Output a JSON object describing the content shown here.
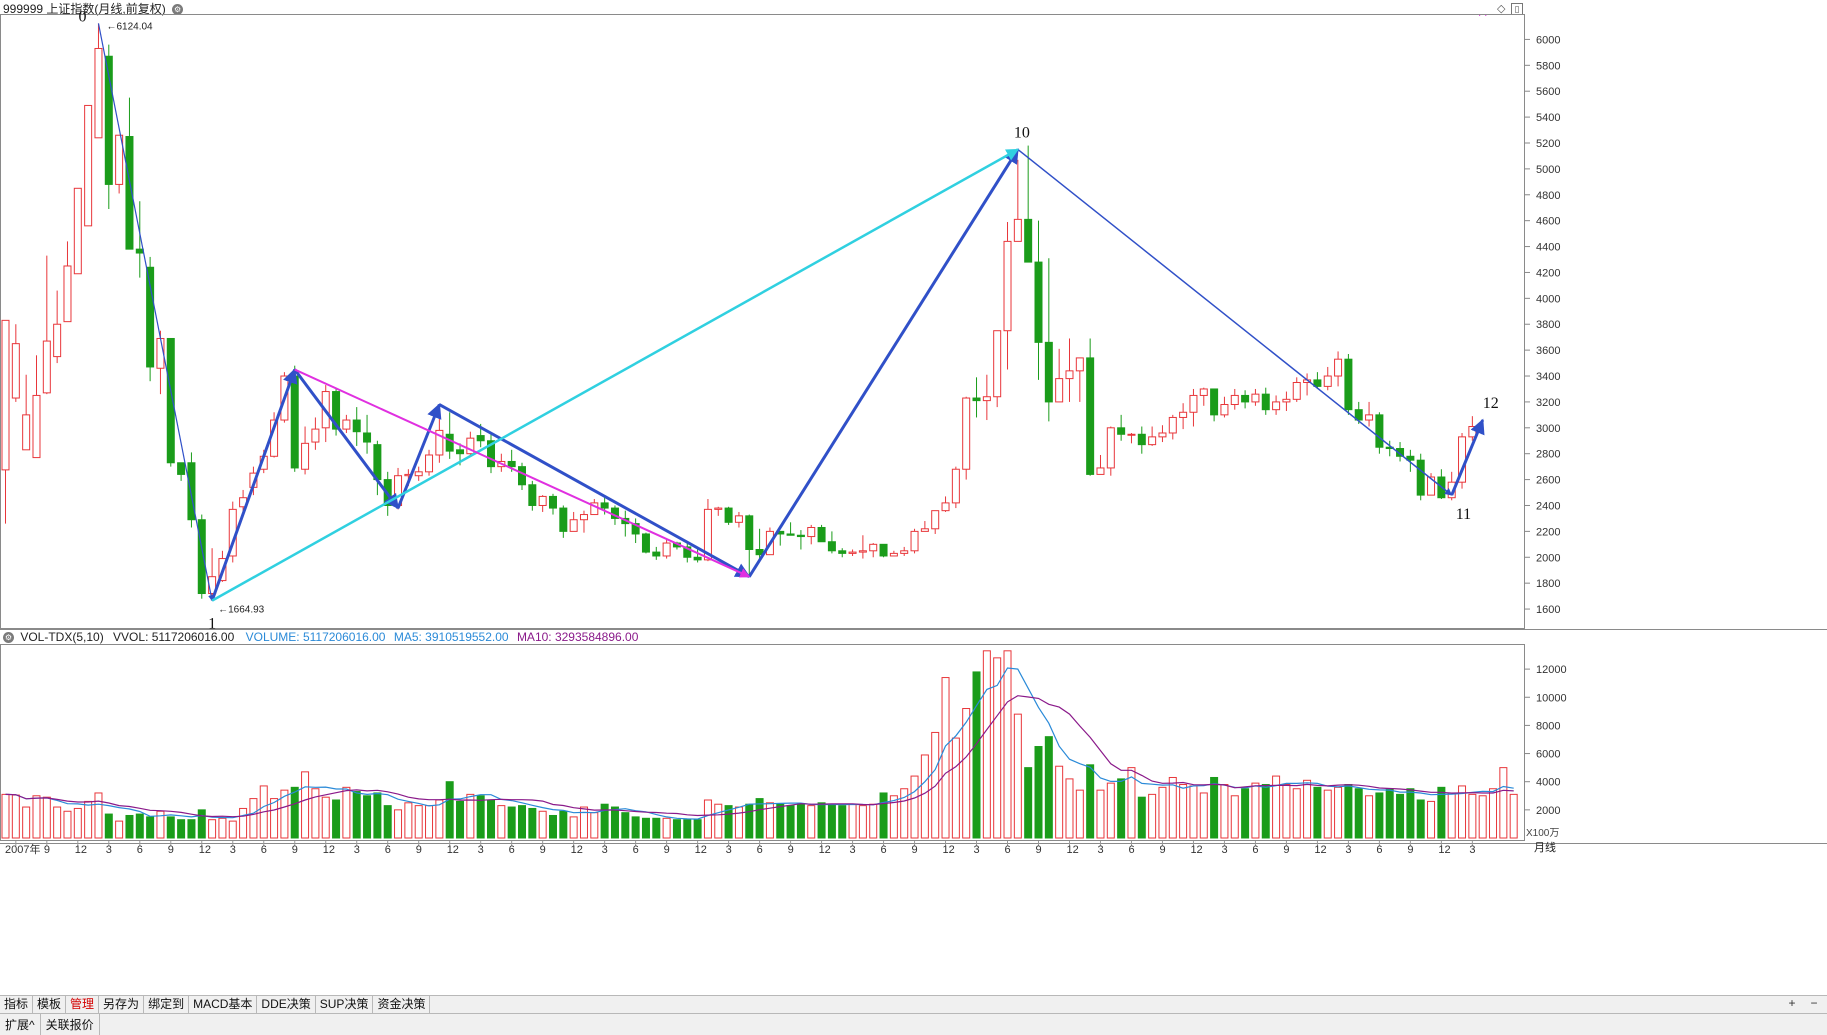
{
  "header": {
    "main_title": "999999 上证指数(月线,前复权)",
    "vol_title": "VOL-TDX(5,10)",
    "vvol": "VVOL: 5117206016.00",
    "volume": "VOLUME: 5117206016.00",
    "ma5": "MA5: 3910519552.00",
    "ma10": "MA10: 3293584896.00"
  },
  "period_label": "月线",
  "vol_unit": "X100万",
  "tabs": [
    "指标",
    "模板",
    "管理",
    "另存为",
    "绑定到",
    "MACD基本",
    "DDE决策",
    "SUP决策",
    "资金决策"
  ],
  "active_tab": "管理",
  "tabs2": [
    "扩展^",
    "关联报价"
  ],
  "zoom": [
    "+",
    "−"
  ],
  "colors": {
    "up": "#e8363a",
    "down": "#1a9c1a",
    "wave": "#3050c8",
    "cyan": "#30d0e0",
    "magenta": "#e030e0",
    "ma5": "#2a8ad8",
    "ma10": "#8a1a8a"
  },
  "chart_data": [
    {
      "type": "candlestick",
      "title": "999999 上证指数(月线,前复权)",
      "ylim": [
        1500,
        6150
      ],
      "yticks": [
        1600,
        1800,
        2000,
        2200,
        2400,
        2600,
        2800,
        3000,
        3200,
        3400,
        3600,
        3800,
        4000,
        4200,
        4400,
        4600,
        4800,
        5000,
        5200,
        5400,
        5600,
        5800,
        6000
      ],
      "start_month": "2006-12",
      "x_tick_labels": [
        "2007年",
        "9",
        "12",
        "3",
        "6",
        "9",
        "12",
        "3",
        "6",
        "9",
        "12",
        "3",
        "6",
        "9",
        "12",
        "3",
        "6",
        "9",
        "12",
        "3",
        "6",
        "9",
        "12",
        "3",
        "6",
        "9",
        "12",
        "3",
        "6",
        "9",
        "12",
        "3",
        "6",
        "9",
        "12",
        "3",
        "6",
        "9",
        "12",
        "3",
        "6",
        "9",
        "12",
        "3",
        "6",
        "9",
        "12",
        "3"
      ],
      "peak_label": "6124.04",
      "trough_label": "1664.93",
      "wave_labels": [
        "0",
        "1",
        "10",
        "11",
        "12"
      ],
      "ohlc": [
        [
          2675,
          3830,
          2260,
          3210
        ],
        [
          3230,
          3650,
          3200,
          3800
        ],
        [
          2830,
          3100,
          3410,
          2850
        ],
        [
          2770,
          3250,
          3560,
          2980
        ],
        [
          3270,
          3670,
          3260,
          4330
        ],
        [
          3550,
          3800,
          3500,
          4060
        ],
        [
          3820,
          4250,
          3820,
          4440
        ],
        [
          4190,
          4850,
          4460,
          4440
        ],
        [
          4560,
          5490,
          4800,
          5240
        ],
        [
          5240,
          5930,
          5270,
          6124
        ],
        [
          5870,
          4880,
          4690,
          5960
        ],
        [
          4880,
          5260,
          4990,
          4810
        ],
        [
          5250,
          4380,
          4420,
          5550
        ],
        [
          4380,
          4350,
          4750,
          4160
        ],
        [
          4240,
          3470,
          4320,
          3360
        ],
        [
          3460,
          3690,
          3750,
          3260
        ],
        [
          3690,
          2730,
          3000,
          2700
        ],
        [
          2730,
          2640,
          2590,
          2680
        ],
        [
          2730,
          2290,
          2810,
          2230
        ],
        [
          2290,
          1720,
          2330,
          1680
        ],
        [
          1720,
          1850,
          2070,
          1665
        ],
        [
          1820,
          1990,
          2050,
          1810
        ],
        [
          2010,
          2370,
          2430,
          1960
        ],
        [
          2390,
          2460,
          2520,
          2340
        ],
        [
          2540,
          2650,
          2700,
          2480
        ],
        [
          2680,
          2780,
          2830,
          2650
        ],
        [
          2780,
          3060,
          3120,
          2770
        ],
        [
          3060,
          3400,
          3430,
          3040
        ],
        [
          3400,
          2690,
          3480,
          2660
        ],
        [
          2680,
          2880,
          3010,
          2640
        ],
        [
          2890,
          2990,
          3080,
          2830
        ],
        [
          3000,
          3280,
          3330,
          2890
        ],
        [
          3280,
          2990,
          3310,
          2940
        ],
        [
          2990,
          3060,
          3100,
          2960
        ],
        [
          3060,
          2970,
          3160,
          2860
        ],
        [
          2960,
          2890,
          3100,
          2800
        ],
        [
          2870,
          2600,
          2900,
          2480
        ],
        [
          2600,
          2400,
          2660,
          2320
        ],
        [
          2400,
          2630,
          2690,
          2370
        ],
        [
          2630,
          2640,
          2680,
          2550
        ],
        [
          2630,
          2660,
          2700,
          2590
        ],
        [
          2660,
          2790,
          2830,
          2630
        ],
        [
          2790,
          2980,
          3120,
          2730
        ],
        [
          2950,
          2820,
          3120,
          2760
        ],
        [
          2830,
          2800,
          2880,
          2710
        ],
        [
          2800,
          2920,
          2970,
          2780
        ],
        [
          2940,
          2900,
          3030,
          2850
        ],
        [
          2900,
          2700,
          2950,
          2650
        ],
        [
          2700,
          2740,
          2800,
          2660
        ],
        [
          2740,
          2700,
          2830,
          2660
        ],
        [
          2700,
          2560,
          2730,
          2520
        ],
        [
          2560,
          2400,
          2590,
          2360
        ],
        [
          2400,
          2470,
          2480,
          2350
        ],
        [
          2470,
          2380,
          2490,
          2330
        ],
        [
          2380,
          2200,
          2400,
          2150
        ],
        [
          2200,
          2290,
          2350,
          2250
        ],
        [
          2290,
          2330,
          2360,
          2190
        ],
        [
          2330,
          2420,
          2450,
          2350
        ],
        [
          2420,
          2380,
          2470,
          2330
        ],
        [
          2380,
          2300,
          2400,
          2250
        ],
        [
          2300,
          2260,
          2360,
          2160
        ],
        [
          2260,
          2180,
          2300,
          2110
        ],
        [
          2180,
          2040,
          2190,
          2030
        ],
        [
          2040,
          2010,
          2080,
          1980
        ],
        [
          2010,
          2110,
          2140,
          1990
        ],
        [
          2110,
          2080,
          2120,
          2060
        ],
        [
          2080,
          2000,
          2110,
          1960
        ],
        [
          2000,
          1980,
          2080,
          1960
        ],
        [
          1980,
          2370,
          2450,
          1970
        ],
        [
          2370,
          2380,
          2390,
          2320
        ],
        [
          2380,
          2270,
          2390,
          2250
        ],
        [
          2270,
          2320,
          2350,
          2230
        ],
        [
          2320,
          2060,
          2330,
          1850
        ],
        [
          2060,
          2020,
          2220,
          1990
        ],
        [
          2020,
          2200,
          2230,
          2140
        ],
        [
          2200,
          2180,
          2200,
          2090
        ],
        [
          2180,
          2170,
          2270,
          2180
        ],
        [
          2170,
          2160,
          2210,
          2060
        ],
        [
          2160,
          2230,
          2250,
          2100
        ],
        [
          2230,
          2120,
          2250,
          2140
        ],
        [
          2120,
          2050,
          2200,
          2030
        ],
        [
          2050,
          2030,
          2070,
          2000
        ],
        [
          2030,
          2040,
          2060,
          2010
        ],
        [
          2040,
          2050,
          2170,
          1990
        ],
        [
          2050,
          2100,
          2110,
          2000
        ],
        [
          2100,
          2010,
          2070,
          2000
        ],
        [
          2010,
          2030,
          2050,
          2010
        ],
        [
          2030,
          2050,
          2080,
          2010
        ],
        [
          2050,
          2200,
          2220,
          2030
        ],
        [
          2200,
          2220,
          2280,
          2200
        ],
        [
          2220,
          2360,
          2360,
          2180
        ],
        [
          2360,
          2420,
          2470,
          2350
        ],
        [
          2420,
          2680,
          2700,
          2380
        ],
        [
          2680,
          3230,
          3240,
          2600
        ],
        [
          3230,
          3210,
          3390,
          3080
        ],
        [
          3210,
          3240,
          3410,
          3060
        ],
        [
          3240,
          3750,
          3750,
          3160
        ],
        [
          3750,
          4440,
          4590,
          3450
        ],
        [
          4440,
          4610,
          5070,
          4450
        ],
        [
          4610,
          4280,
          5180,
          4490
        ],
        [
          4280,
          3660,
          4600,
          3370
        ],
        [
          3660,
          3200,
          4310,
          3050
        ],
        [
          3200,
          3380,
          3610,
          3270
        ],
        [
          3380,
          3440,
          3690,
          3200
        ],
        [
          3440,
          3540,
          3490,
          3200
        ],
        [
          3540,
          2640,
          3690,
          2630
        ],
        [
          2640,
          2690,
          2790,
          2640
        ],
        [
          2690,
          3000,
          3010,
          2630
        ],
        [
          3000,
          2950,
          3100,
          2900
        ],
        [
          2950,
          2950,
          2960,
          2880
        ],
        [
          2950,
          2870,
          3010,
          2800
        ],
        [
          2870,
          2930,
          3010,
          2860
        ],
        [
          2930,
          2960,
          3020,
          2890
        ],
        [
          2960,
          3080,
          3100,
          2910
        ],
        [
          3080,
          3120,
          3190,
          2990
        ],
        [
          3120,
          3250,
          3300,
          3010
        ],
        [
          3250,
          3300,
          3310,
          3170
        ],
        [
          3300,
          3100,
          3280,
          3050
        ],
        [
          3100,
          3180,
          3240,
          3080
        ],
        [
          3180,
          3250,
          3300,
          3140
        ],
        [
          3250,
          3200,
          3290,
          3150
        ],
        [
          3200,
          3260,
          3300,
          3170
        ],
        [
          3260,
          3140,
          3310,
          3100
        ],
        [
          3140,
          3200,
          3250,
          3100
        ],
        [
          3200,
          3220,
          3280,
          3130
        ],
        [
          3220,
          3350,
          3390,
          3200
        ],
        [
          3350,
          3370,
          3420,
          3250
        ],
        [
          3370,
          3320,
          3430,
          3300
        ],
        [
          3320,
          3400,
          3470,
          3290
        ],
        [
          3400,
          3530,
          3590,
          3320
        ],
        [
          3530,
          3140,
          3570,
          3100
        ],
        [
          3140,
          3060,
          3200,
          3030
        ],
        [
          3060,
          3100,
          3200,
          3010
        ],
        [
          3100,
          2850,
          3120,
          2800
        ],
        [
          2850,
          2840,
          2900,
          2780
        ],
        [
          2840,
          2780,
          2890,
          2740
        ],
        [
          2780,
          2750,
          2830,
          2660
        ],
        [
          2750,
          2480,
          2800,
          2440
        ],
        [
          2480,
          2620,
          2650,
          2490
        ],
        [
          2620,
          2460,
          2680,
          2450
        ],
        [
          2460,
          2580,
          2660,
          2440
        ],
        [
          2580,
          2930,
          2960,
          2530
        ],
        [
          2930,
          3010,
          3090,
          2900
        ]
      ],
      "waves": [
        {
          "from": [
            9,
            6124
          ],
          "to": [
            20,
            1664.93
          ],
          "color": "wave",
          "width": 1.2
        },
        {
          "from": [
            20,
            1665
          ],
          "to": [
            28,
            3450
          ],
          "color": "wave",
          "width": 3
        },
        {
          "from": [
            28,
            3450
          ],
          "to": [
            38,
            2380
          ],
          "color": "wave",
          "width": 3
        },
        {
          "from": [
            38,
            2380
          ],
          "to": [
            42,
            3180
          ],
          "color": "wave",
          "width": 3
        },
        {
          "from": [
            42,
            3180
          ],
          "to": [
            72,
            1850
          ],
          "color": "wave",
          "width": 3
        },
        {
          "from": [
            72,
            1850
          ],
          "to": [
            98,
            5150
          ],
          "color": "wave",
          "width": 3
        },
        {
          "from": [
            98,
            5150
          ],
          "to": [
            140,
            2480
          ],
          "color": "wave",
          "width": 1.5
        },
        {
          "from": [
            140,
            2480
          ],
          "to": [
            143,
            3060
          ],
          "color": "wave",
          "width": 3
        },
        {
          "from": [
            20,
            1665
          ],
          "to": [
            98,
            5150
          ],
          "color": "cyan",
          "width": 2.5
        },
        {
          "from": [
            28,
            3450
          ],
          "to": [
            72,
            1850
          ],
          "color": "magenta",
          "width": 2
        }
      ]
    },
    {
      "type": "bar",
      "title": "VOL-TDX(5,10)",
      "ylim": [
        0,
        13500
      ],
      "yticks": [
        2000,
        4000,
        6000,
        8000,
        10000,
        12000
      ],
      "unit": "X100万",
      "volumes": [
        3100,
        3050,
        2200,
        3000,
        2900,
        2200,
        1900,
        2100,
        2600,
        3200,
        1700,
        1200,
        1600,
        1700,
        1500,
        1900,
        1500,
        1300,
        1300,
        2000,
        1300,
        1400,
        1200,
        2100,
        2800,
        3700,
        2800,
        3400,
        3600,
        4700,
        3500,
        2900,
        2700,
        3600,
        3300,
        3000,
        3200,
        2300,
        2000,
        2500,
        2300,
        2300,
        2700,
        4000,
        2600,
        3100,
        3000,
        2700,
        2300,
        2200,
        2300,
        2100,
        1900,
        1600,
        1900,
        1500,
        2200,
        1800,
        2400,
        2200,
        1800,
        1500,
        1400,
        1400,
        1400,
        1300,
        1300,
        1300,
        2700,
        2400,
        2300,
        2200,
        2400,
        2800,
        2500,
        2400,
        2300,
        2400,
        2300,
        2500,
        2400,
        2300,
        2400,
        2300,
        2400,
        3200,
        3000,
        3500,
        4400,
        5900,
        7500,
        11400,
        7100,
        9200,
        11800,
        13300,
        12800,
        13300,
        8800,
        5000,
        6500,
        7200,
        5100,
        4200,
        3400,
        5200,
        3400,
        3900,
        4200,
        5000,
        2900,
        3100,
        3600,
        4300,
        3800,
        3700,
        3200,
        4300,
        3800,
        3000,
        3500,
        3900,
        3800,
        4400,
        3800,
        3500,
        4100,
        3600,
        3400,
        3600,
        3800,
        3500,
        3000,
        3200,
        3500,
        3100,
        3500,
        2700,
        2600,
        3600,
        3200,
        3700,
        3100,
        3000,
        3500,
        5000,
        3100
      ]
    }
  ]
}
